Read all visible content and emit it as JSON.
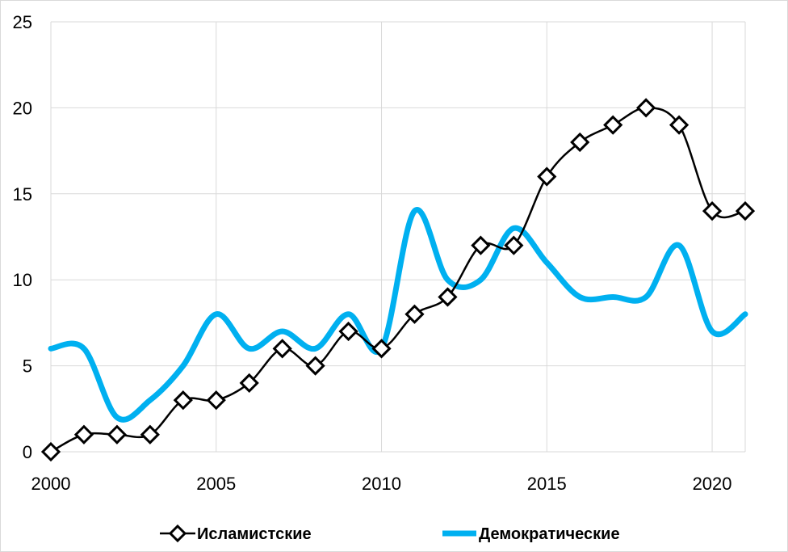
{
  "chart_data": {
    "type": "line",
    "x": [
      2000,
      2001,
      2002,
      2003,
      2004,
      2005,
      2006,
      2007,
      2008,
      2009,
      2010,
      2011,
      2012,
      2013,
      2014,
      2015,
      2016,
      2017,
      2018,
      2019,
      2020,
      2021
    ],
    "series": [
      {
        "name": "Исламистские",
        "color": "#000000",
        "marker": "diamond",
        "values": [
          0,
          1,
          1,
          1,
          3,
          3,
          4,
          6,
          5,
          7,
          6,
          8,
          9,
          12,
          12,
          16,
          18,
          19,
          20,
          19,
          14,
          14
        ]
      },
      {
        "name": "Демократические",
        "color": "#00b0f0",
        "marker": "none",
        "values": [
          6,
          6,
          2,
          3,
          5,
          8,
          6,
          7,
          6,
          8,
          6,
          14,
          10,
          10,
          13,
          11,
          9,
          9,
          9,
          12,
          7,
          8
        ]
      }
    ],
    "xlim": [
      2000,
      2021
    ],
    "ylim": [
      0,
      25
    ],
    "x_ticks": [
      "2000",
      "2005",
      "2010",
      "2015",
      "2020"
    ],
    "y_ticks": [
      "0",
      "5",
      "10",
      "15",
      "20",
      "25"
    ],
    "grid": true,
    "legend_position": "bottom",
    "smooth": true
  }
}
